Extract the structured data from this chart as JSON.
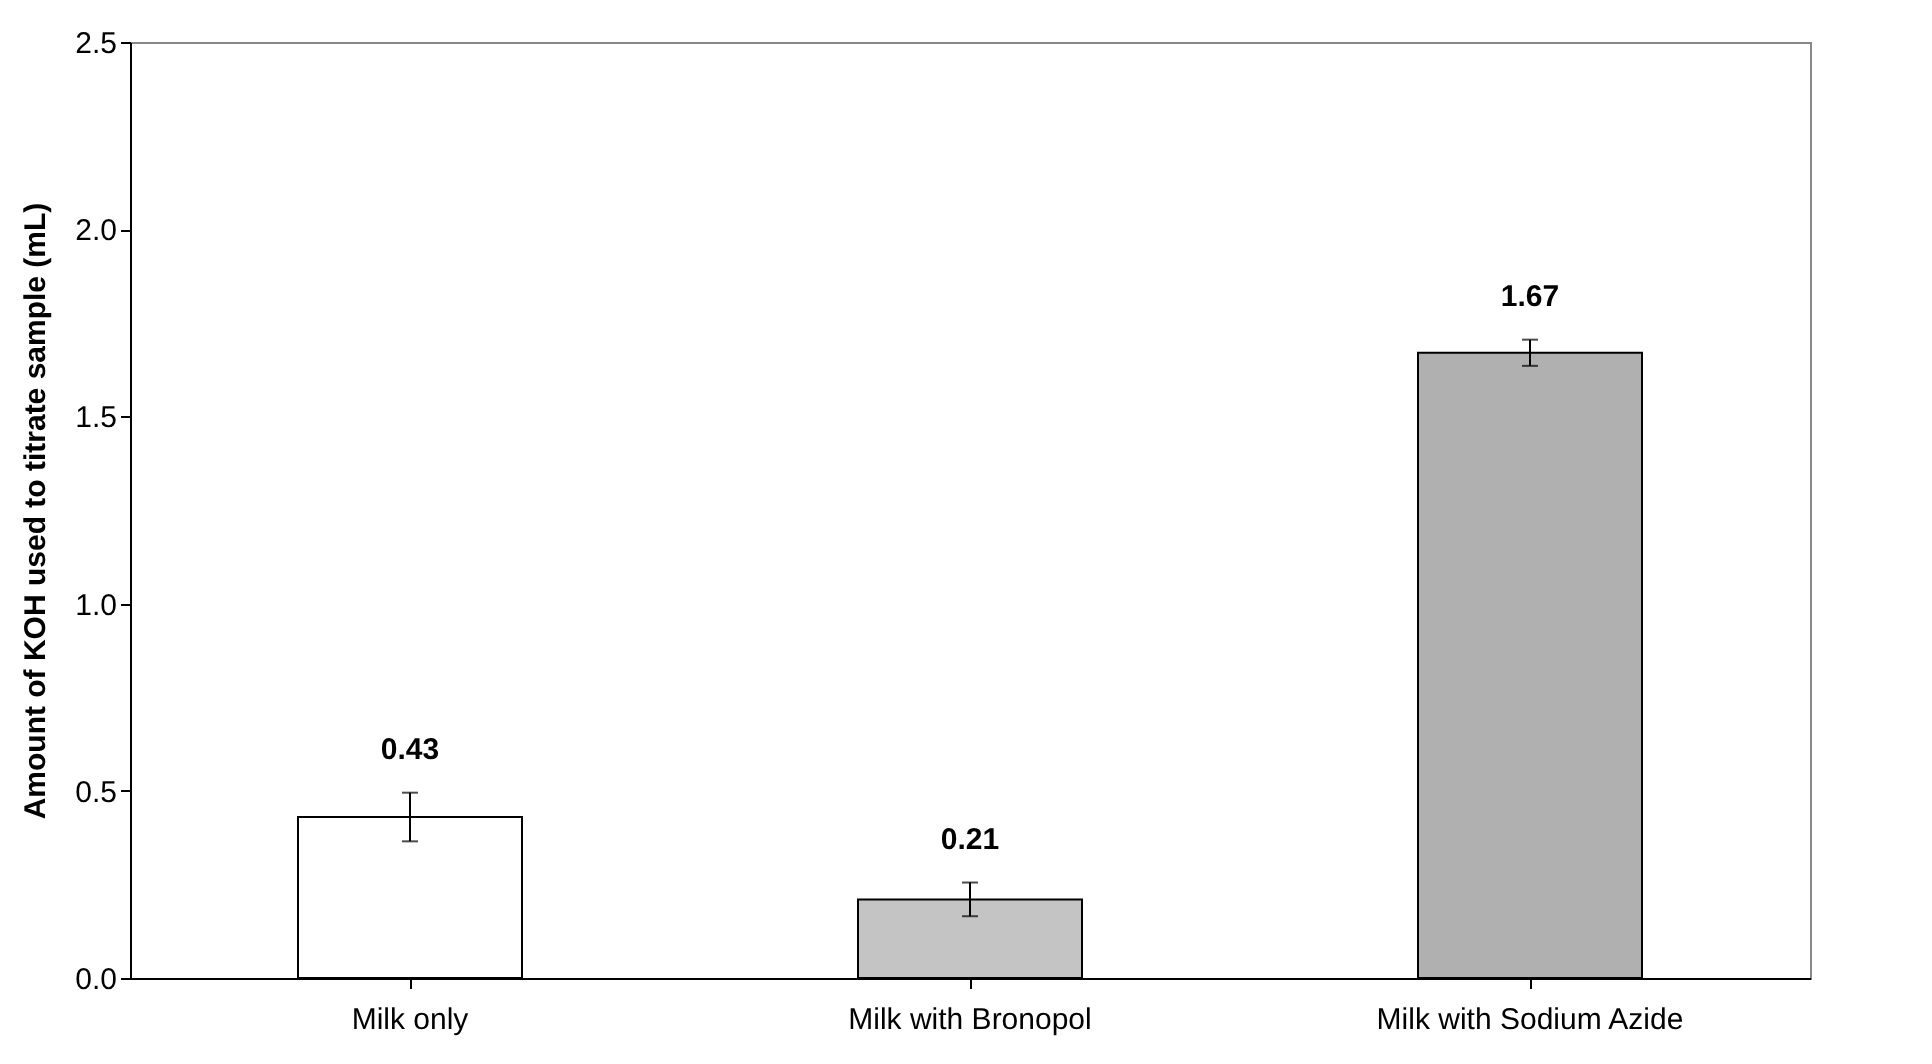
{
  "chart_data": {
    "type": "bar",
    "ylabel": "Amount of KOH used to titrate sample (mL)",
    "categories": [
      "Milk only",
      "Milk with Bronopol",
      "Milk with Sodium Azide"
    ],
    "values": [
      0.43,
      0.21,
      1.67
    ],
    "colors": [
      "#ffffff",
      "#c4c4c4",
      "#b0b0b0"
    ],
    "errors": [
      0.065,
      0.045,
      0.035
    ],
    "data_labels": true,
    "ylim": [
      0,
      2.5
    ],
    "yticks": [
      {
        "value": 0,
        "label": "0.0"
      },
      {
        "value": 0.5,
        "label": "0.5"
      },
      {
        "value": 1,
        "label": "1.0"
      },
      {
        "value": 1.5,
        "label": "1.5"
      },
      {
        "value": 2,
        "label": "2.0"
      },
      {
        "value": 2.5,
        "label": "2.5"
      }
    ],
    "grid": false
  }
}
